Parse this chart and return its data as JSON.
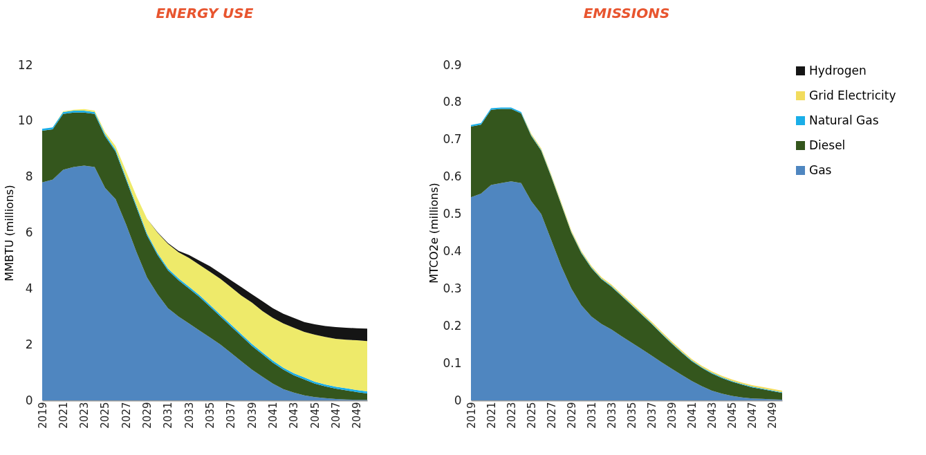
{
  "chart_data": [
    {
      "type": "area",
      "title": "ENERGY USE",
      "ylabel": "MMBTU (millions)",
      "stacked": true,
      "legend": false,
      "grid": false,
      "categories": [
        "2019",
        null,
        "2021",
        null,
        "2023",
        null,
        "2025",
        null,
        "2027",
        null,
        "2029",
        null,
        "2031",
        null,
        "2033",
        null,
        "2035",
        null,
        "2037",
        null,
        "2039",
        null,
        "2041",
        null,
        "2043",
        null,
        "2045",
        null,
        "2047",
        null,
        "2049",
        null
      ],
      "ylim": [
        0,
        12
      ],
      "yticks": [
        0,
        2,
        4,
        6,
        8,
        10,
        12
      ],
      "series": [
        {
          "color": "#4f86c0",
          "values": [
            7.8,
            7.9,
            8.25,
            8.35,
            8.4,
            8.35,
            7.6,
            7.2,
            6.3,
            5.3,
            4.4,
            3.8,
            3.3,
            3.0,
            2.75,
            2.5,
            2.25,
            2.0,
            1.7,
            1.4,
            1.1,
            0.85,
            0.6,
            0.4,
            0.28,
            0.18,
            0.12,
            0.08,
            0.05,
            0.03,
            0.02,
            0.02
          ]
        },
        {
          "color": "#34561d",
          "values": [
            1.85,
            1.8,
            2.0,
            1.95,
            1.9,
            1.9,
            1.85,
            1.7,
            1.6,
            1.6,
            1.5,
            1.4,
            1.35,
            1.3,
            1.25,
            1.2,
            1.1,
            1.0,
            0.95,
            0.9,
            0.85,
            0.8,
            0.75,
            0.7,
            0.62,
            0.57,
            0.48,
            0.42,
            0.37,
            0.33,
            0.28,
            0.23
          ]
        },
        {
          "color": "#1aaee8",
          "values": [
            0.07,
            0.07,
            0.07,
            0.07,
            0.07,
            0.07,
            0.07,
            0.07,
            0.07,
            0.07,
            0.07,
            0.07,
            0.07,
            0.07,
            0.07,
            0.07,
            0.07,
            0.07,
            0.07,
            0.07,
            0.07,
            0.07,
            0.07,
            0.07,
            0.07,
            0.07,
            0.07,
            0.07,
            0.07,
            0.07,
            0.07,
            0.07
          ]
        },
        {
          "color": "#eeea6a",
          "values": [
            0,
            0,
            0.02,
            0.03,
            0.05,
            0.05,
            0.08,
            0.13,
            0.23,
            0.33,
            0.53,
            0.73,
            0.88,
            0.93,
            1.03,
            1.08,
            1.18,
            1.28,
            1.33,
            1.38,
            1.48,
            1.48,
            1.53,
            1.58,
            1.63,
            1.63,
            1.68,
            1.7,
            1.71,
            1.74,
            1.78,
            1.8
          ]
        },
        {
          "color": "#151515",
          "values": [
            0,
            0,
            0,
            0,
            0,
            0,
            0,
            0,
            0,
            0,
            0,
            0.02,
            0.03,
            0.05,
            0.1,
            0.15,
            0.2,
            0.2,
            0.25,
            0.3,
            0.3,
            0.35,
            0.35,
            0.35,
            0.35,
            0.35,
            0.37,
            0.39,
            0.42,
            0.43,
            0.43,
            0.45
          ]
        }
      ]
    },
    {
      "type": "area",
      "title": "EMISSIONS",
      "ylabel": "MTCO2e (millions)",
      "stacked": true,
      "legend": "right",
      "grid": false,
      "categories": [
        "2019",
        null,
        "2021",
        null,
        "2023",
        null,
        "2025",
        null,
        "2027",
        null,
        "2029",
        null,
        "2031",
        null,
        "2033",
        null,
        "2035",
        null,
        "2037",
        null,
        "2039",
        null,
        "2041",
        null,
        "2043",
        null,
        "2045",
        null,
        "2047",
        null,
        "2049",
        null
      ],
      "ylim": [
        0,
        0.9
      ],
      "yticks": [
        0,
        0.1,
        0.2,
        0.3,
        0.4,
        0.5,
        0.6,
        0.7,
        0.8,
        0.9
      ],
      "series": [
        {
          "name": "Gas",
          "color": "#4f86c0",
          "values": [
            0.545,
            0.555,
            0.578,
            0.583,
            0.588,
            0.583,
            0.535,
            0.5,
            0.43,
            0.36,
            0.3,
            0.255,
            0.225,
            0.205,
            0.19,
            0.172,
            0.155,
            0.138,
            0.12,
            0.102,
            0.085,
            0.068,
            0.052,
            0.038,
            0.026,
            0.018,
            0.012,
            0.008,
            0.005,
            0.004,
            0.003,
            0.002
          ]
        },
        {
          "name": "Diesel",
          "color": "#34561d",
          "values": [
            0.19,
            0.185,
            0.202,
            0.199,
            0.194,
            0.187,
            0.175,
            0.17,
            0.17,
            0.165,
            0.15,
            0.14,
            0.13,
            0.12,
            0.115,
            0.108,
            0.1,
            0.092,
            0.085,
            0.076,
            0.067,
            0.06,
            0.053,
            0.049,
            0.046,
            0.042,
            0.038,
            0.034,
            0.03,
            0.026,
            0.022,
            0.018
          ]
        },
        {
          "name": "Natural Gas",
          "color": "#1aaee8",
          "values": [
            0.004,
            0.004,
            0.004,
            0.004,
            0.004,
            0.004,
            0.002,
            0.002,
            0.002,
            0.002,
            0.002,
            0.002,
            0.002,
            0.002,
            0.002,
            0.002,
            0.002,
            0.002,
            0.002,
            0.002,
            0.002,
            0.002,
            0.002,
            0.002,
            0.002,
            0.002,
            0.002,
            0.002,
            0.002,
            0.002,
            0.002,
            0.002
          ]
        },
        {
          "name": "Grid Electricity",
          "color": "#f2dc5d",
          "values": [
            0,
            0,
            0,
            0,
            0,
            0,
            0.004,
            0.004,
            0.004,
            0.004,
            0.004,
            0.004,
            0.004,
            0.004,
            0.004,
            0.004,
            0.004,
            0.004,
            0.004,
            0.004,
            0.004,
            0.004,
            0.004,
            0.004,
            0.004,
            0.004,
            0.004,
            0.004,
            0.004,
            0.004,
            0.004,
            0.004
          ]
        },
        {
          "name": "Hydrogen",
          "color": "#151515",
          "values": [
            null,
            null,
            null,
            null,
            null,
            null,
            null,
            null,
            null,
            null,
            null,
            null,
            null,
            null,
            null,
            null,
            null,
            null,
            null,
            null,
            null,
            null,
            null,
            null,
            null,
            null,
            null,
            null,
            null,
            null,
            null,
            null
          ]
        }
      ]
    }
  ]
}
